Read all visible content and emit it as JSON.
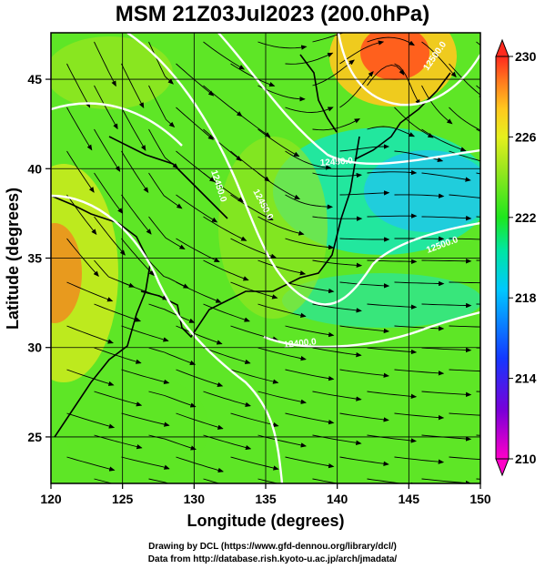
{
  "title": "MSM 21Z03Jul2023 (200.0hPa)",
  "axes": {
    "xlabel": "Longitude (degrees)",
    "ylabel": "Latitude  (degrees)",
    "xticks": [
      "120",
      "125",
      "130",
      "135",
      "140",
      "145",
      "150"
    ],
    "yticks": [
      "25",
      "30",
      "35",
      "40",
      "45"
    ],
    "xlim": [
      120,
      150
    ],
    "ylim": [
      22.4,
      47.6
    ]
  },
  "colorbar": {
    "labels": [
      "230",
      "226",
      "222",
      "218",
      "214",
      "210"
    ],
    "range": [
      210,
      230
    ],
    "colors": [
      "#ff00c8",
      "#7a00d8",
      "#1438ff",
      "#00c8ff",
      "#00e6a0",
      "#1ee61e",
      "#9be61e",
      "#e6f01e",
      "#ffc81e",
      "#ff781e",
      "#ff2a1e"
    ]
  },
  "contours": {
    "labels": [
      "12450.0",
      "12450.0",
      "12450.0",
      "12500.0",
      "12500.0",
      "12400.0"
    ],
    "color": "#ffffff"
  },
  "credits": {
    "line1": "Drawing by DCL (https://www.gfd-dennou.org/library/dcl/)",
    "line2": "Data from http://database.rish.kyoto-u.ac.jp/arch/jmadata/"
  }
}
